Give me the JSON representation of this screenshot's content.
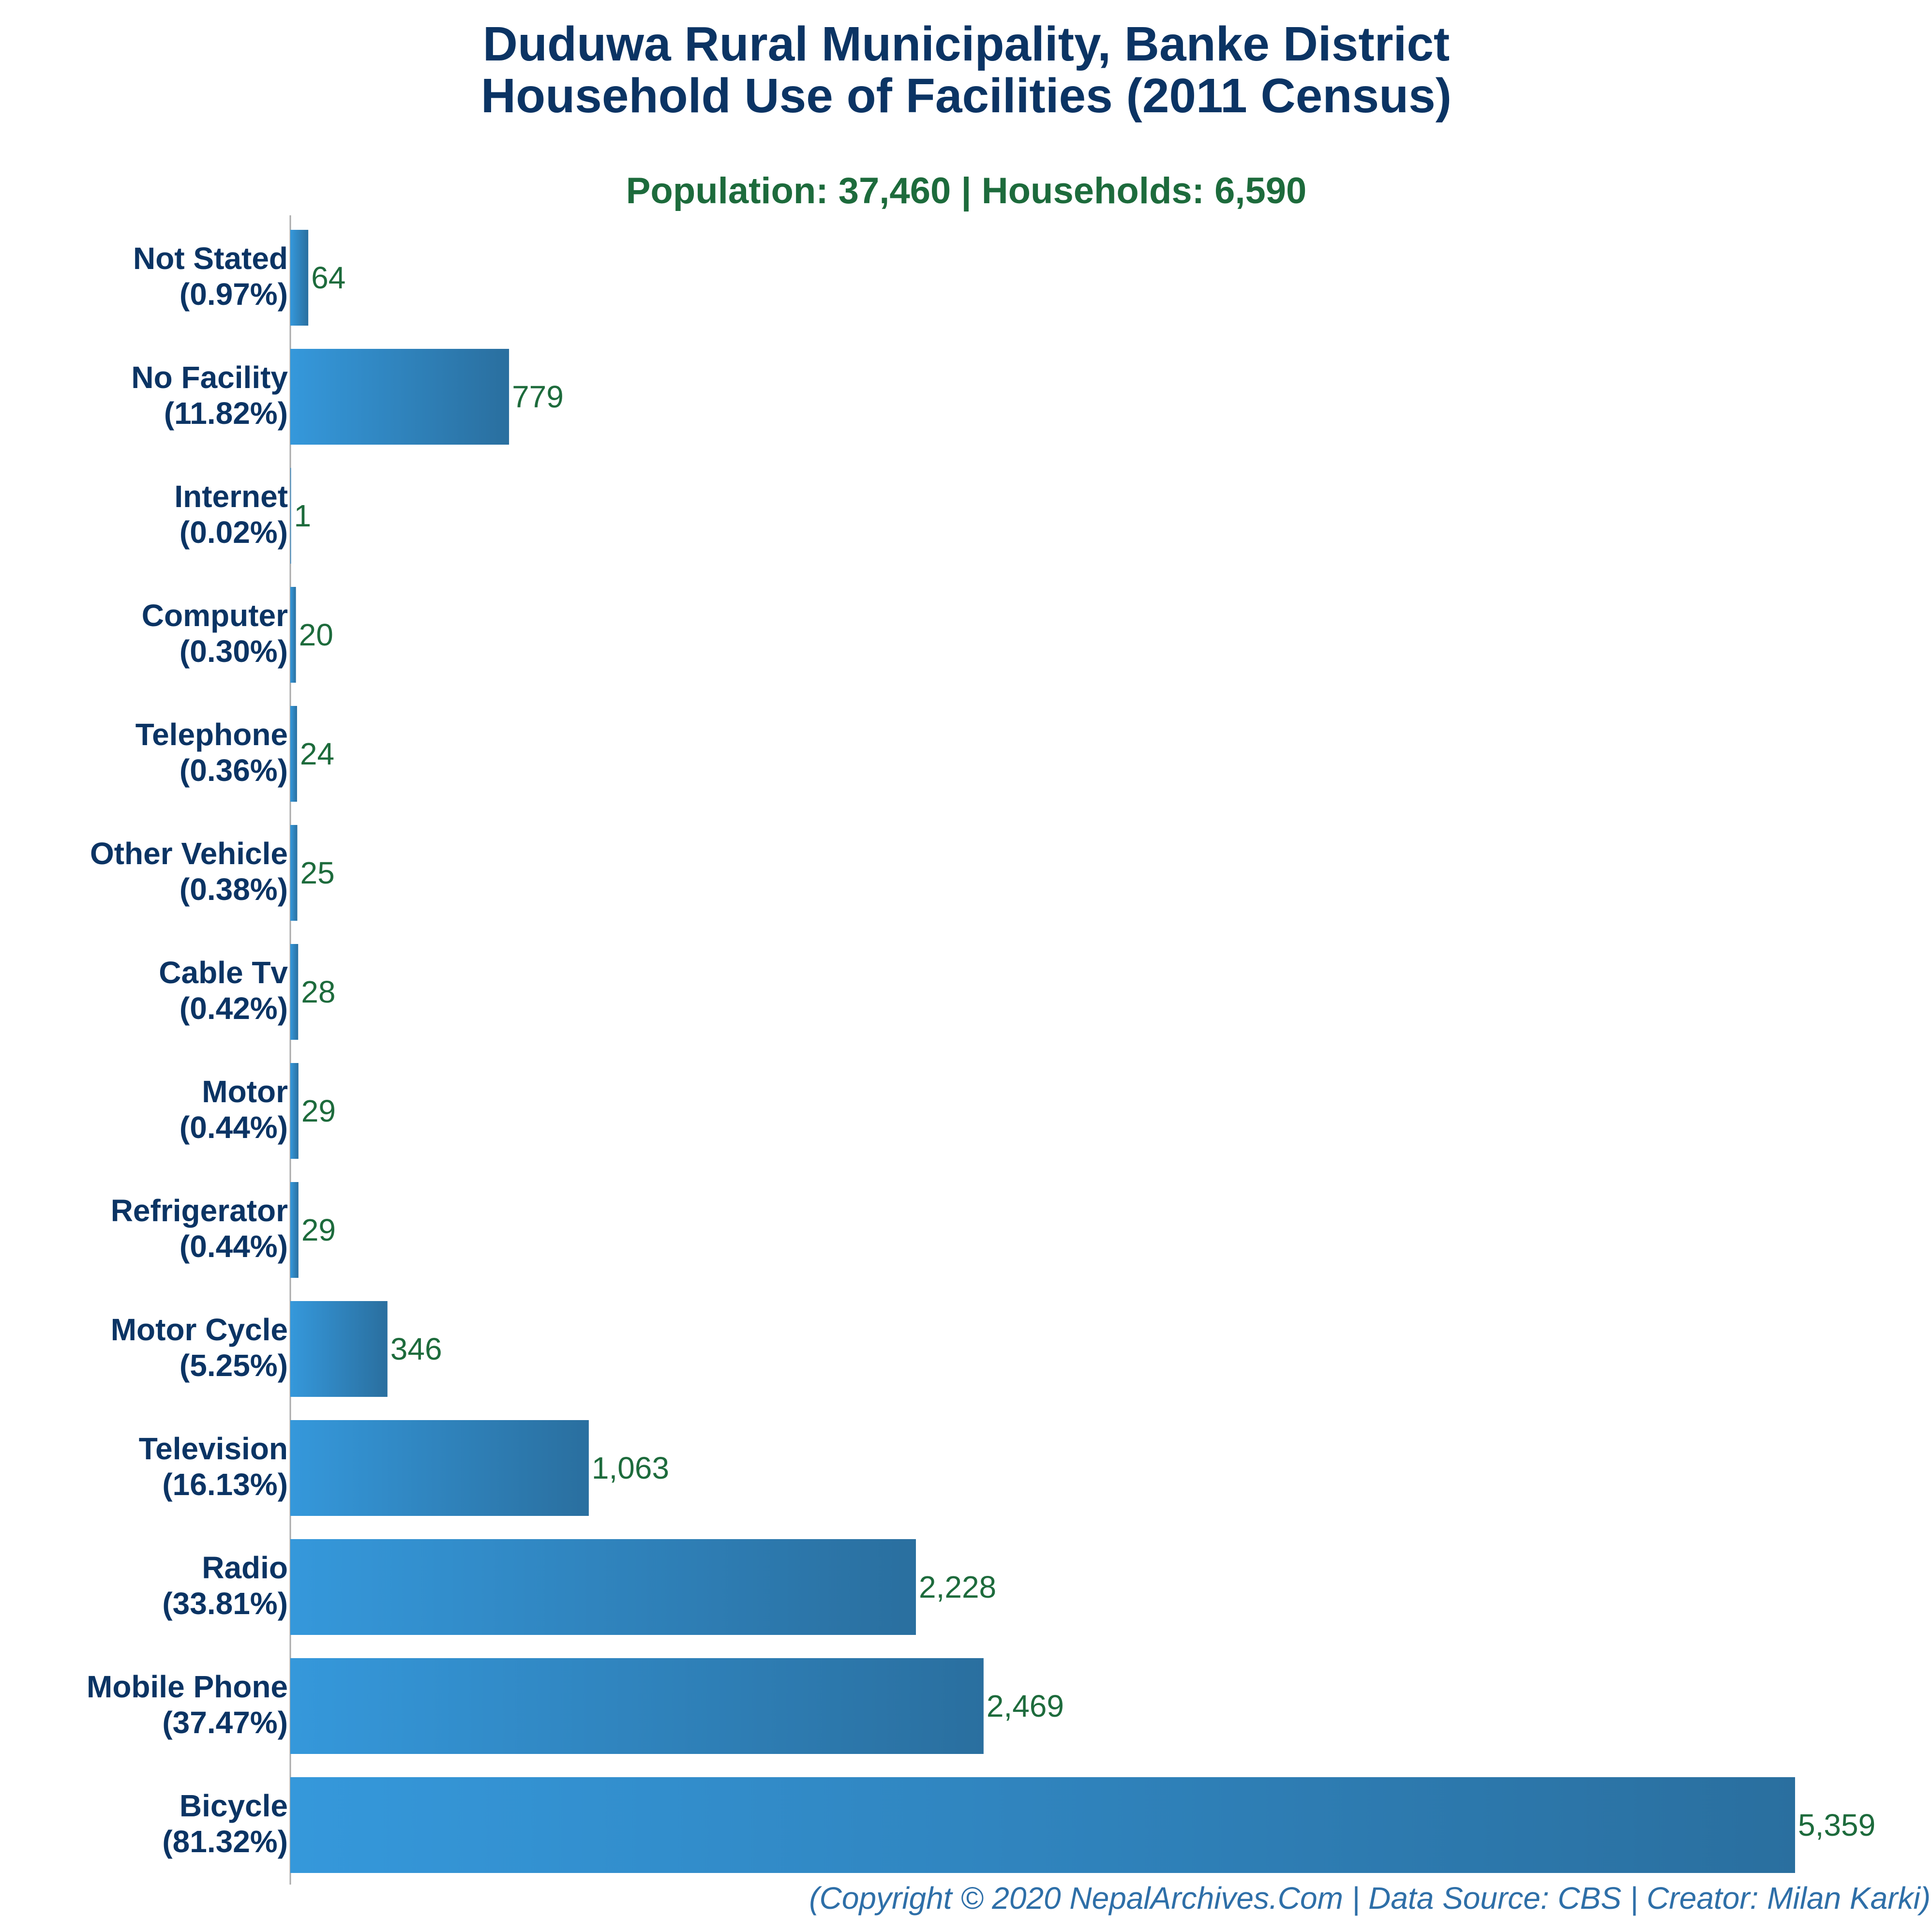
{
  "header": {
    "title_line1": "Duduwa Rural Municipality, Banke District",
    "title_line2": "Household Use of Facilities (2011 Census)",
    "subtitle": "Population: 37,460 | Households: 6,590"
  },
  "footer": {
    "credit": "(Copyright © 2020 NepalArchives.Com | Data Source: CBS | Creator: Milan Karki)"
  },
  "colors": {
    "title": "#0b3464",
    "subtitle": "#1d6b3c",
    "category_label": "#0b3464",
    "value_label": "#1d6b3c",
    "footer": "#2e6fa8",
    "bar_start": "#3598db",
    "bar_end": "#2a6f9f",
    "axis": "#aaaaaa"
  },
  "chart_data": {
    "type": "bar",
    "orientation": "horizontal",
    "title": "Duduwa Rural Municipality, Banke District Household Use of Facilities (2011 Census)",
    "xlim": [
      0,
      5359
    ],
    "grid": false,
    "legend": "none",
    "categories": [
      {
        "name": "Not Stated",
        "percent": "(0.97%)",
        "value": 64,
        "value_label": "64"
      },
      {
        "name": "No Facility",
        "percent": "(11.82%)",
        "value": 779,
        "value_label": "779"
      },
      {
        "name": "Internet",
        "percent": "(0.02%)",
        "value": 1,
        "value_label": "1"
      },
      {
        "name": "Computer",
        "percent": "(0.30%)",
        "value": 20,
        "value_label": "20"
      },
      {
        "name": "Telephone",
        "percent": "(0.36%)",
        "value": 24,
        "value_label": "24"
      },
      {
        "name": "Other Vehicle",
        "percent": "(0.38%)",
        "value": 25,
        "value_label": "25"
      },
      {
        "name": "Cable Tv",
        "percent": "(0.42%)",
        "value": 28,
        "value_label": "28"
      },
      {
        "name": "Motor",
        "percent": "(0.44%)",
        "value": 29,
        "value_label": "29"
      },
      {
        "name": "Refrigerator",
        "percent": "(0.44%)",
        "value": 29,
        "value_label": "29"
      },
      {
        "name": "Motor Cycle",
        "percent": "(5.25%)",
        "value": 346,
        "value_label": "346"
      },
      {
        "name": "Television",
        "percent": "(16.13%)",
        "value": 1063,
        "value_label": "1,063"
      },
      {
        "name": "Radio",
        "percent": "(33.81%)",
        "value": 2228,
        "value_label": "2,228"
      },
      {
        "name": "Mobile Phone",
        "percent": "(37.47%)",
        "value": 2469,
        "value_label": "2,469"
      },
      {
        "name": "Bicycle",
        "percent": "(81.32%)",
        "value": 5359,
        "value_label": "5,359"
      }
    ]
  }
}
